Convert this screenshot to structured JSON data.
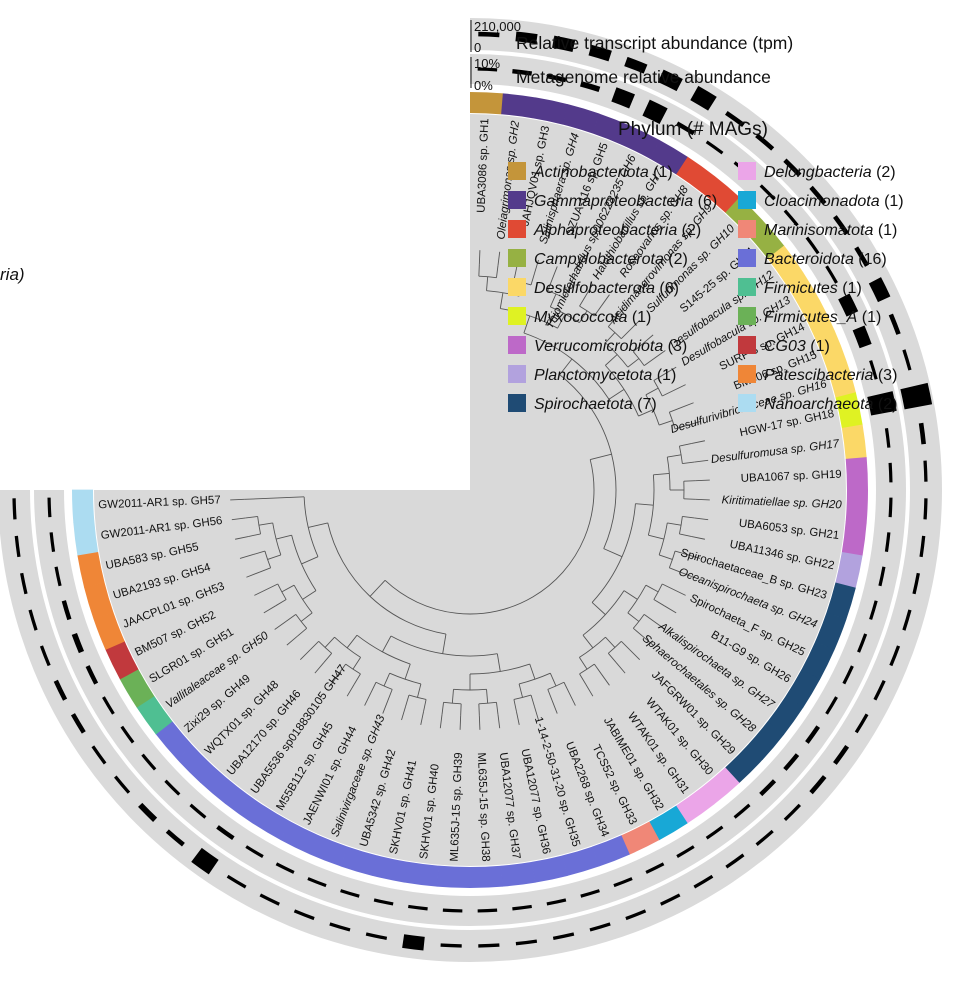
{
  "figure": {
    "edge_label": "ria)",
    "rings": {
      "transcript": {
        "title": "Relative transcript abundance (tpm)",
        "max_label": "210,000",
        "min_label": "0"
      },
      "metagenome": {
        "title": "Metagenome relative abundance",
        "max_label": "10%",
        "min_label": "0%"
      }
    },
    "legend": {
      "title": "Phylum (# MAGs)",
      "items": [
        {
          "name": "Actinobacteriota",
          "count": "(1)",
          "color": "#c4953a"
        },
        {
          "name": "Gammaproteobacteria",
          "count": "(6)",
          "color": "#533a8b"
        },
        {
          "name": "Alphaproteobacteria",
          "count": "(2)",
          "color": "#e04a34"
        },
        {
          "name": "Campylobacterota",
          "count": "(2)",
          "color": "#96b143"
        },
        {
          "name": "Desulfobacterota",
          "count": "(6)",
          "color": "#fbd867"
        },
        {
          "name": "Myxococcota",
          "count": "(1)",
          "color": "#dff223"
        },
        {
          "name": "Verrucomicrobiota",
          "count": "(3)",
          "color": "#bd69c8"
        },
        {
          "name": "Planctomycetota",
          "count": "(1)",
          "color": "#b2a2de"
        },
        {
          "name": "Spirochaetota",
          "count": "(7)",
          "color": "#1f4b74"
        },
        {
          "name": "Delongbacteria",
          "count": "(2)",
          "color": "#eba5e8"
        },
        {
          "name": "Cloacimonadota",
          "count": "(1)",
          "color": "#18a8d6"
        },
        {
          "name": "Marinisomatota",
          "count": "(1)",
          "color": "#f08777"
        },
        {
          "name": "Bacteroidota",
          "count": "(16)",
          "color": "#6a6fd7"
        },
        {
          "name": "Firmicutes",
          "count": "(1)",
          "color": "#4fbf92"
        },
        {
          "name": "Firmicutes_A",
          "count": "(1)",
          "color": "#6bb157"
        },
        {
          "name": "CG03",
          "count": "(1)",
          "color": "#c1393d"
        },
        {
          "name": "Patescibacteria",
          "count": "(3)",
          "color": "#ef8637"
        },
        {
          "name": "Nanoarchaeota",
          "count": "(2)",
          "color": "#acdcf1"
        }
      ]
    },
    "leaves": [
      {
        "label": "UBA3086 sp. GH1",
        "italic": false,
        "phylum": 0,
        "tpm": 0.1,
        "meta": 0.05
      },
      {
        "label": "Oleiagrimonas sp. GH2",
        "italic": true,
        "phylum": 1,
        "tpm": 0.3,
        "meta": 0.1
      },
      {
        "label": "JAHJQV01 sp. GH3",
        "italic": false,
        "phylum": 1,
        "tpm": 0.4,
        "meta": 0.1
      },
      {
        "label": "Salinisphaera sp. GH4",
        "italic": true,
        "phylum": 1,
        "tpm": 0.35,
        "meta": 0.15
      },
      {
        "label": "SZUA-116 sp. GH5",
        "italic": false,
        "phylum": 1,
        "tpm": 0.3,
        "meta": 0.55
      },
      {
        "label": "Thiomicrorhabdus sp006228235 GH6",
        "italic": true,
        "phylum": 1,
        "tpm": 0.45,
        "meta": 0.65
      },
      {
        "label": "Halothiobacillus sp. GH7",
        "italic": true,
        "phylum": 1,
        "tpm": 0.55,
        "meta": 0.1
      },
      {
        "label": "Roseovarius sp. GH8",
        "italic": true,
        "phylum": 2,
        "tpm": 0.1,
        "meta": 0.05
      },
      {
        "label": "Acidimangrovimonas sp. GH9",
        "italic": true,
        "phylum": 2,
        "tpm": 0.1,
        "meta": 0.05
      },
      {
        "label": "Sulfurimonas sp. GH10",
        "italic": true,
        "phylum": 3,
        "tpm": 0.1,
        "meta": 0.05
      },
      {
        "label": "S145-25 sp. GH11",
        "italic": false,
        "phylum": 3,
        "tpm": 0.1,
        "meta": 0.05
      },
      {
        "label": "Desulfobacula sp. GH12",
        "italic": true,
        "phylum": 4,
        "tpm": 0.1,
        "meta": 0.05
      },
      {
        "label": "Desulfobacula sp. GH13",
        "italic": true,
        "phylum": 4,
        "tpm": 0.1,
        "meta": 0.05
      },
      {
        "label": "SURF-3 sp. GH14",
        "italic": false,
        "phylum": 4,
        "tpm": 0.45,
        "meta": 0.45
      },
      {
        "label": "BM506 sp. GH15",
        "italic": false,
        "phylum": 4,
        "tpm": 0.1,
        "meta": 0.45
      },
      {
        "label": "Desulfurivibrionaceae sp. GH16",
        "italic": true,
        "phylum": 4,
        "tpm": 0.05,
        "meta": 0.05
      },
      {
        "label": "HGW-17 sp. GH18",
        "italic": false,
        "phylum": 5,
        "tpm": 1.0,
        "meta": 1.0
      },
      {
        "label": "Desulfuromusa sp. GH17",
        "italic": true,
        "phylum": 4,
        "tpm": 0.1,
        "meta": 0.05
      },
      {
        "label": "UBA1067 sp. GH19",
        "italic": false,
        "phylum": 6,
        "tpm": 0.05,
        "meta": 0.05
      },
      {
        "label": "Kiritimatiellae sp. GH20",
        "italic": true,
        "phylum": 6,
        "tpm": 0.05,
        "meta": 0.05
      },
      {
        "label": "UBA6053 sp. GH21",
        "italic": false,
        "phylum": 6,
        "tpm": 0.05,
        "meta": 0.05
      },
      {
        "label": "UBA11346 sp. GH22",
        "italic": false,
        "phylum": 7,
        "tpm": 0.05,
        "meta": 0.05
      },
      {
        "label": "Spirochaetaceae_B sp. GH23",
        "italic": false,
        "phylum": 8,
        "tpm": 0.05,
        "meta": 0.05
      },
      {
        "label": "Oceanispirochaeta sp. GH24",
        "italic": true,
        "phylum": 8,
        "tpm": 0.05,
        "meta": 0.05
      },
      {
        "label": "Spirochaeta_F sp. GH25",
        "italic": false,
        "phylum": 8,
        "tpm": 0.05,
        "meta": 0.05
      },
      {
        "label": "B11-G9 sp. GH26",
        "italic": false,
        "phylum": 8,
        "tpm": 0.05,
        "meta": 0.05
      },
      {
        "label": "Alkalispirochaeta sp. GH27",
        "italic": true,
        "phylum": 8,
        "tpm": 0.1,
        "meta": 0.1
      },
      {
        "label": "Sphaerochaetales sp. GH28",
        "italic": true,
        "phylum": 8,
        "tpm": 0.1,
        "meta": 0.1
      },
      {
        "label": "JAFGRW01 sp. GH29",
        "italic": false,
        "phylum": 8,
        "tpm": 0.05,
        "meta": 0.1
      },
      {
        "label": "WTAK01 sp. GH30",
        "italic": false,
        "phylum": 9,
        "tpm": 0.05,
        "meta": 0.05
      },
      {
        "label": "WTAK01 sp. GH31",
        "italic": false,
        "phylum": 9,
        "tpm": 0.05,
        "meta": 0.05
      },
      {
        "label": "JABIME01 sp. GH32",
        "italic": false,
        "phylum": 10,
        "tpm": 0.05,
        "meta": 0.05
      },
      {
        "label": "TCS52 sp. GH33",
        "italic": false,
        "phylum": 11,
        "tpm": 0.05,
        "meta": 0.05
      },
      {
        "label": "UBA2268 sp. GH34",
        "italic": false,
        "phylum": 12,
        "tpm": 0.05,
        "meta": 0.05
      },
      {
        "label": "1-14-2-50-31-20 sp. GH35",
        "italic": false,
        "phylum": 12,
        "tpm": 0.05,
        "meta": 0.05
      },
      {
        "label": "UBA12077 sp. GH36",
        "italic": false,
        "phylum": 12,
        "tpm": 0.05,
        "meta": 0.05
      },
      {
        "label": "UBA12077 sp. GH37",
        "italic": false,
        "phylum": 12,
        "tpm": 0.05,
        "meta": 0.05
      },
      {
        "label": "ML635J-15 sp. GH38",
        "italic": false,
        "phylum": 12,
        "tpm": 0.05,
        "meta": 0.05
      },
      {
        "label": "ML635J-15 sp. GH39",
        "italic": false,
        "phylum": 12,
        "tpm": 0.05,
        "meta": 0.05
      },
      {
        "label": "SKHV01 sp. GH40",
        "italic": false,
        "phylum": 12,
        "tpm": 0.45,
        "meta": 0.05
      },
      {
        "label": "SKHV01 sp. GH41",
        "italic": false,
        "phylum": 12,
        "tpm": 0.05,
        "meta": 0.05
      },
      {
        "label": "UBA5342 sp. GH42",
        "italic": false,
        "phylum": 12,
        "tpm": 0.05,
        "meta": 0.05
      },
      {
        "label": "Salinivirgaceae sp. GH43",
        "italic": true,
        "phylum": 12,
        "tpm": 0.05,
        "meta": 0.05
      },
      {
        "label": "JAENWI01 sp. GH44",
        "italic": false,
        "phylum": 12,
        "tpm": 0.05,
        "meta": 0.05
      },
      {
        "label": "M55B112 sp. GH45",
        "italic": false,
        "phylum": 12,
        "tpm": 0.05,
        "meta": 0.05
      },
      {
        "label": "UBA5536 sp018830105 GH47",
        "italic": false,
        "phylum": 12,
        "tpm": 0.6,
        "meta": 0.1
      },
      {
        "label": "UBA12170 sp. GH46",
        "italic": false,
        "phylum": 12,
        "tpm": 0.1,
        "meta": 0.05
      },
      {
        "label": "WQTX01 sp. GH48",
        "italic": false,
        "phylum": 12,
        "tpm": 0.15,
        "meta": 0.05
      },
      {
        "label": "Zixi29 sp. GH49",
        "italic": false,
        "phylum": 12,
        "tpm": 0.05,
        "meta": 0.05
      },
      {
        "label": "Vallitaleaceae sp. GH50",
        "italic": true,
        "phylum": 13,
        "tpm": 0.05,
        "meta": 0.05
      },
      {
        "label": "SLGR01 sp. GH51",
        "italic": false,
        "phylum": 14,
        "tpm": 0.1,
        "meta": 0.05
      },
      {
        "label": "BM507 sp. GH52",
        "italic": false,
        "phylum": 15,
        "tpm": 0.1,
        "meta": 0.1
      },
      {
        "label": "JAACPL01 sp. GH53",
        "italic": false,
        "phylum": 16,
        "tpm": 0.05,
        "meta": 0.15
      },
      {
        "label": "UBA2193 sp. GH54",
        "italic": false,
        "phylum": 16,
        "tpm": 0.05,
        "meta": 0.1
      },
      {
        "label": "UBA583 sp. GH55",
        "italic": false,
        "phylum": 16,
        "tpm": 0.05,
        "meta": 0.05
      },
      {
        "label": "GW2011-AR1 sp. GH56",
        "italic": false,
        "phylum": 17,
        "tpm": 0.05,
        "meta": 0.05
      },
      {
        "label": "GW2011-AR1 sp. GH57",
        "italic": false,
        "phylum": 17,
        "tpm": 0.05,
        "meta": 0.05
      }
    ]
  }
}
